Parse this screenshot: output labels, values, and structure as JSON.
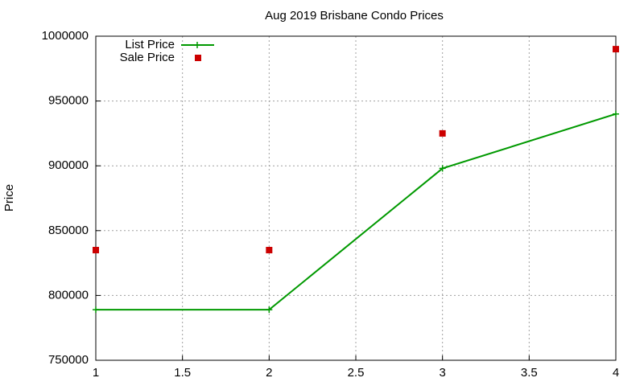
{
  "chart_data": {
    "type": "line",
    "title": "Aug 2019 Brisbane Condo Prices",
    "y_label": "Price",
    "x": [
      1,
      2,
      3,
      4
    ],
    "series": [
      {
        "name": "List Price",
        "color": "#009900",
        "style": "linespoints",
        "values": [
          789000,
          789000,
          898000,
          940000
        ]
      },
      {
        "name": "Sale Price",
        "color": "#cc0000",
        "style": "points",
        "values": [
          835000,
          835000,
          925000,
          990000
        ]
      }
    ],
    "xlim": [
      1,
      4
    ],
    "xticks": [
      1,
      1.5,
      2,
      2.5,
      3,
      3.5,
      4
    ],
    "ylim": [
      750000,
      1000000
    ],
    "yticks": [
      750000,
      800000,
      850000,
      900000,
      950000,
      1000000
    ],
    "grid": true,
    "legend": "top-left"
  }
}
